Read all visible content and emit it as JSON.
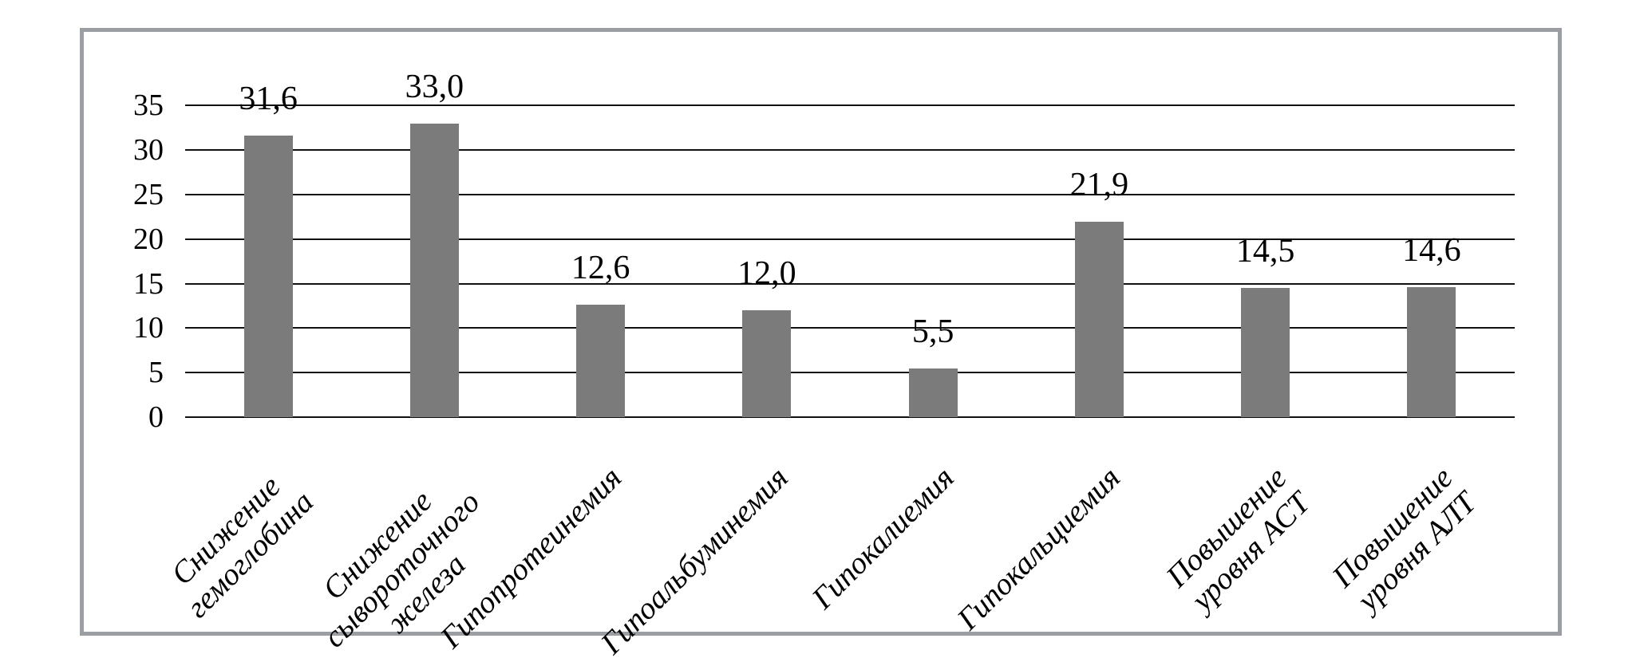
{
  "figure": {
    "background_color": "#ffffff",
    "frame_border_color": "#9b9ea2",
    "title": ""
  },
  "chart_data": {
    "type": "bar",
    "title": "",
    "xlabel": "",
    "ylabel": "",
    "categories": [
      "Снижение\nгемоглобина",
      "Снижение\nсывороточного\nжелеза",
      "Гипопротеинемия",
      "Гипоальбуминемия",
      "Гипокалиемия",
      "Гипокальциемия",
      "Повышение\nуровня АСТ",
      "Повышение\nуровня АЛТ"
    ],
    "values": [
      31.6,
      33.0,
      12.6,
      12.0,
      5.5,
      21.9,
      14.5,
      14.6
    ],
    "value_labels": [
      "31,6",
      "33,0",
      "12,6",
      "12,0",
      "5,5",
      "21,9",
      "14,5",
      "14,6"
    ],
    "decimal_separator": ",",
    "y_ticks": [
      0,
      5,
      10,
      15,
      20,
      25,
      30,
      35
    ],
    "ylim": [
      0,
      35
    ],
    "grid": true,
    "legend_position": "none",
    "bar_color": "#7b7b7b",
    "grid_line_color": "#111111",
    "text_color": "#000000"
  }
}
